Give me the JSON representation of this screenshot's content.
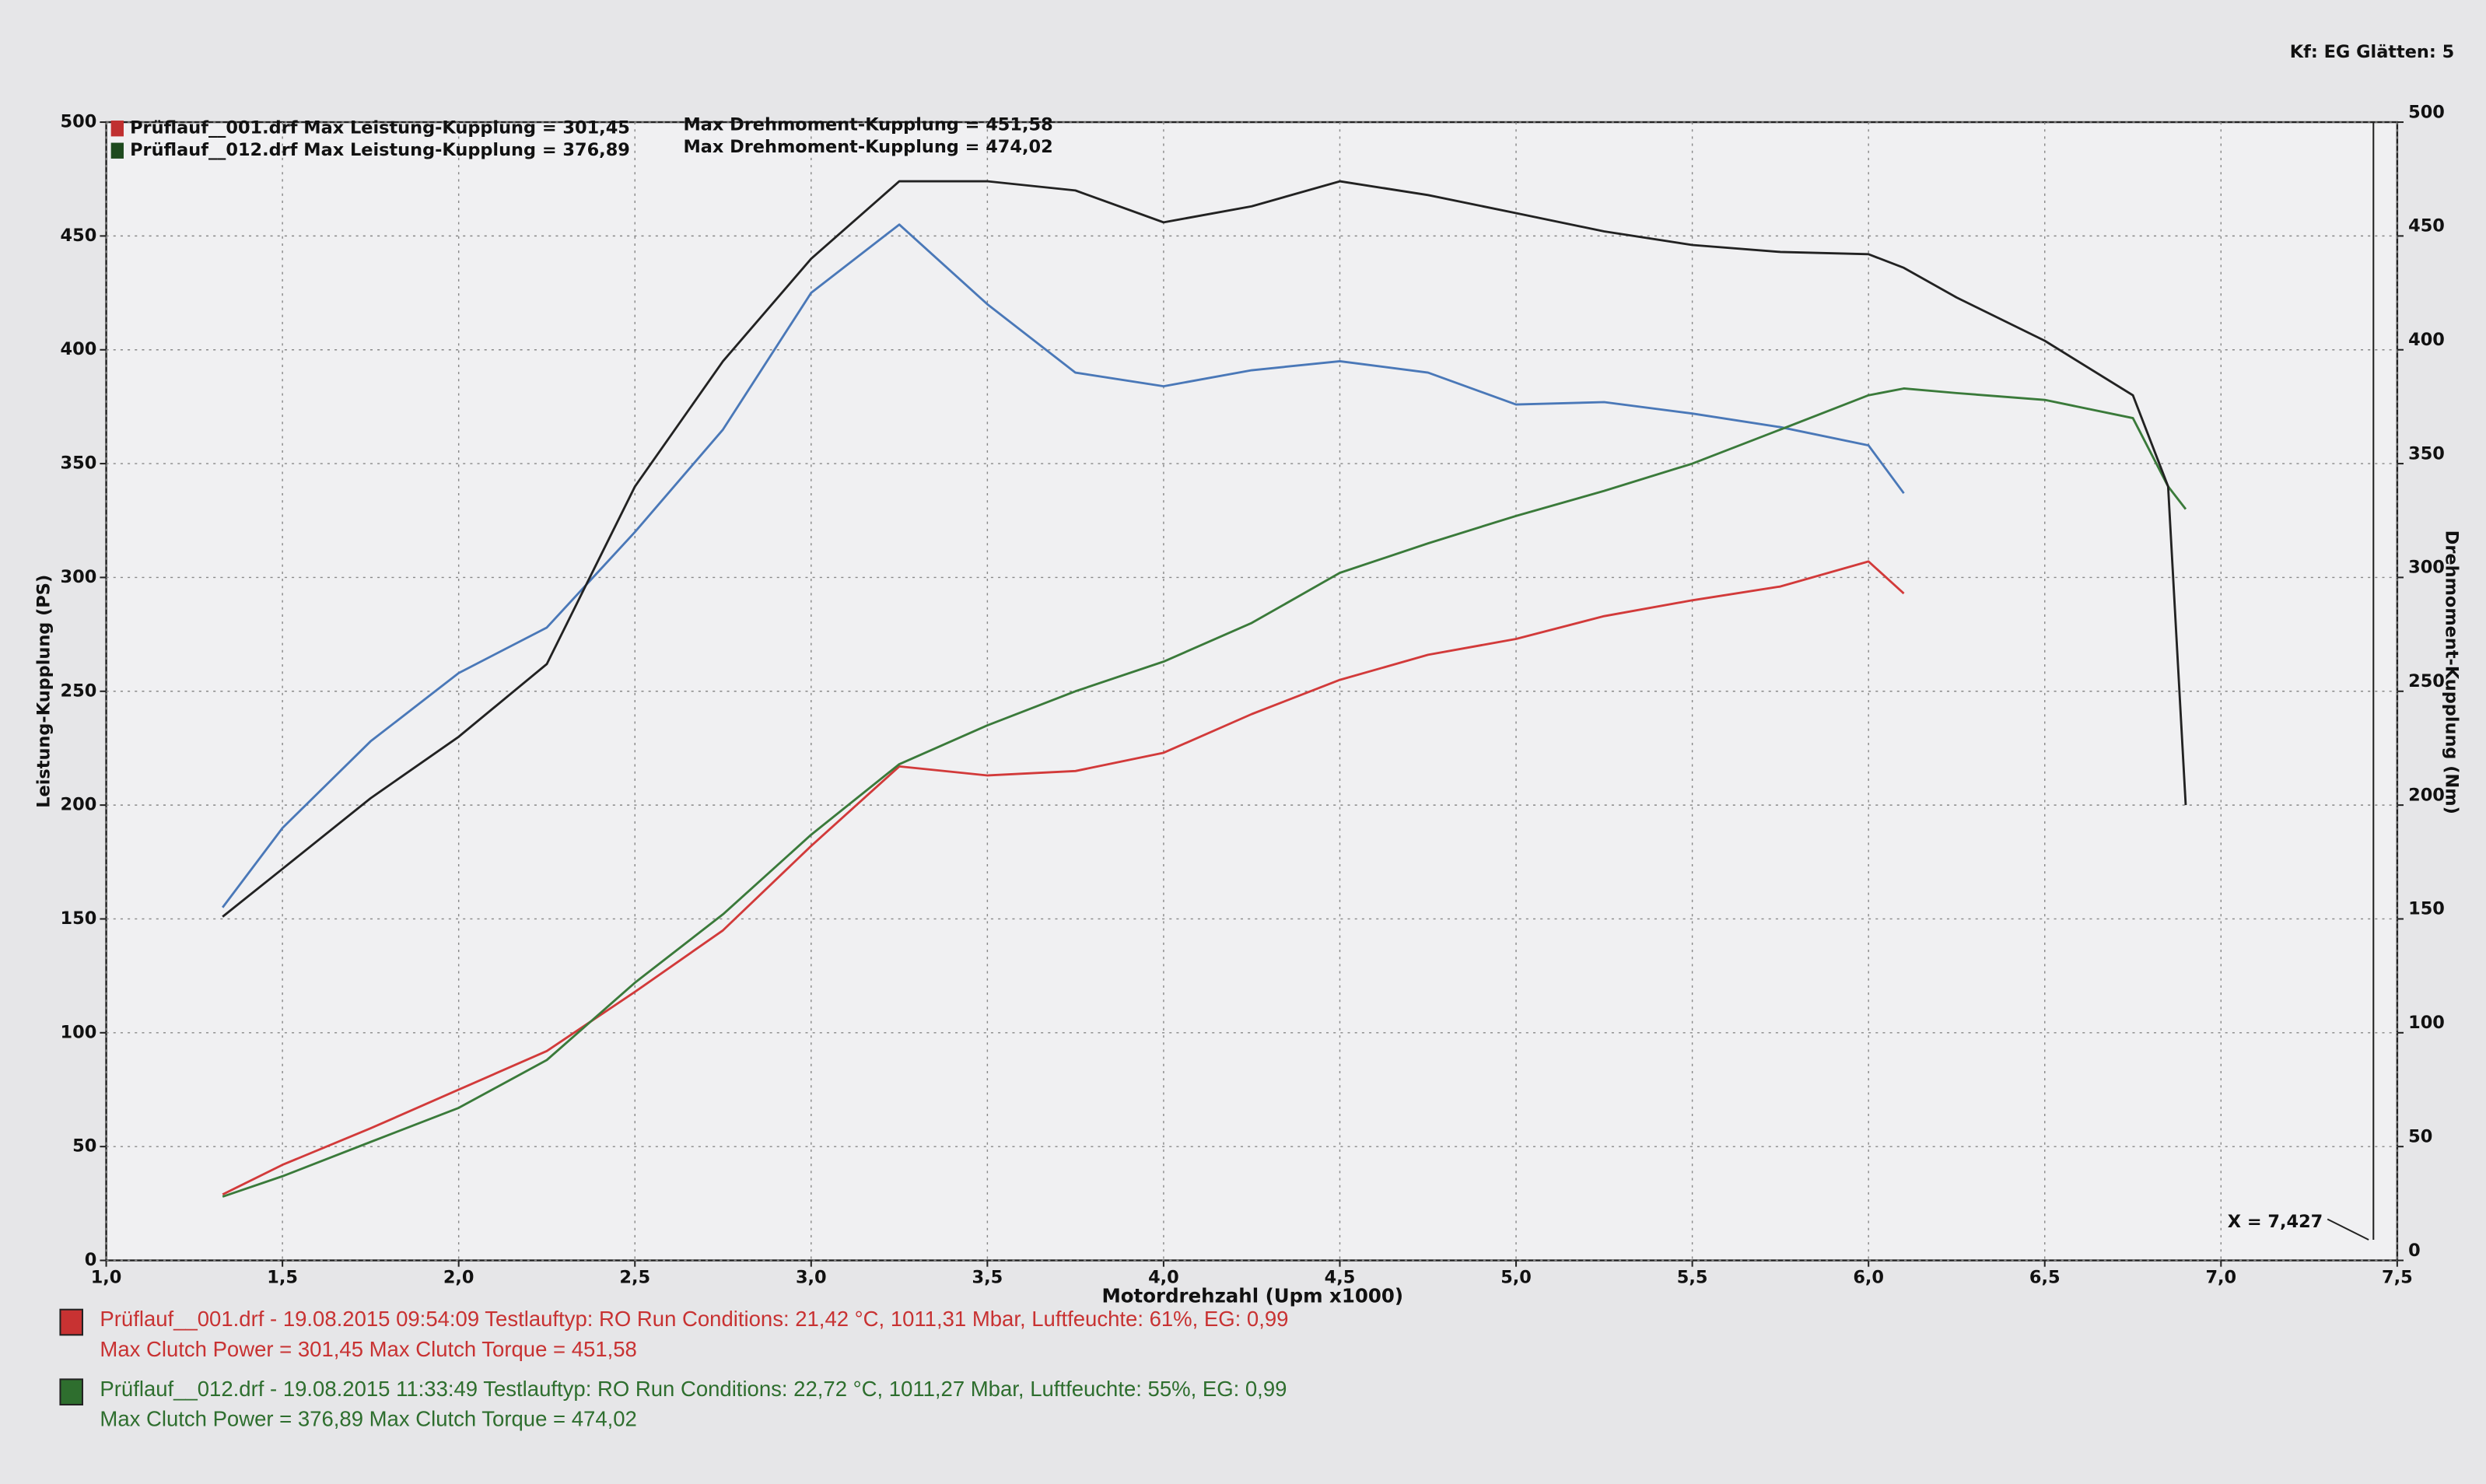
{
  "chart_data": {
    "type": "line",
    "corner_note": "Kf: EG  Glätten: 5",
    "xlabel": "Motordrehzahl (Upm x1000)",
    "ylabel": "Leistung-Kupplung (PS)",
    "y2label": "Drehmoment-Kupplung (Nm)",
    "annotation": "X = 7,427",
    "grid": true,
    "xlim": [
      1.0,
      7.5
    ],
    "xticks": [
      {
        "value": 1.0,
        "label": "1,0"
      },
      {
        "value": 1.5,
        "label": "1,5"
      },
      {
        "value": 2.0,
        "label": "2,0"
      },
      {
        "value": 2.5,
        "label": "2,5"
      },
      {
        "value": 3.0,
        "label": "3,0"
      },
      {
        "value": 3.5,
        "label": "3,5"
      },
      {
        "value": 4.0,
        "label": "4,0"
      },
      {
        "value": 4.5,
        "label": "4,5"
      },
      {
        "value": 5.0,
        "label": "5,0"
      },
      {
        "value": 5.5,
        "label": "5,5"
      },
      {
        "value": 6.0,
        "label": "6,0"
      },
      {
        "value": 6.5,
        "label": "6,5"
      },
      {
        "value": 7.0,
        "label": "7,0"
      },
      {
        "value": 7.5,
        "label": "7,5"
      }
    ],
    "ylim": [
      0,
      500
    ],
    "yticks": [
      0,
      50,
      100,
      150,
      200,
      250,
      300,
      350,
      400,
      450,
      500
    ],
    "y2lim": [
      0,
      500
    ],
    "y2ticks": [
      0,
      50,
      100,
      150,
      200,
      250,
      300,
      350,
      400,
      450,
      500
    ],
    "x": [
      1.33,
      1.5,
      1.75,
      2.0,
      2.25,
      2.5,
      2.75,
      3.0,
      3.25,
      3.5,
      3.75,
      4.0,
      4.25,
      4.5,
      4.75,
      5.0,
      5.25,
      5.5,
      5.75,
      6.0,
      6.1,
      6.25,
      6.5,
      6.75,
      6.85,
      6.9
    ],
    "series": [
      {
        "color": "#d23a3a",
        "values": [
          29,
          42,
          58,
          75,
          92,
          118,
          145,
          182,
          217,
          213,
          215,
          223,
          240,
          255,
          266,
          273,
          283,
          290,
          296,
          307,
          293,
          null,
          null,
          null,
          null,
          null
        ]
      },
      {
        "color": "#4a78b8",
        "axis": "y2",
        "values": [
          155,
          190,
          228,
          258,
          278,
          320,
          365,
          425,
          455,
          420,
          390,
          384,
          391,
          395,
          390,
          376,
          377,
          372,
          366,
          358,
          337,
          null,
          null,
          null,
          null,
          null
        ]
      },
      {
        "color": "#3a7a3a",
        "values": [
          28,
          37,
          52,
          67,
          88,
          122,
          152,
          187,
          218,
          235,
          250,
          263,
          280,
          302,
          315,
          327,
          338,
          350,
          365,
          380,
          383,
          381,
          378,
          370,
          340,
          330
        ]
      },
      {
        "color": "#222222",
        "axis": "y2",
        "values": [
          151,
          172,
          203,
          230,
          262,
          340,
          395,
          440,
          474,
          474,
          470,
          456,
          463,
          474,
          468,
          460,
          452,
          446,
          443,
          442,
          436,
          423,
          404,
          380,
          340,
          200
        ]
      }
    ],
    "legend": [
      {
        "text": "Prüflauf__001.drf Max Leistung-Kupplung = 301,45",
        "torque": "Max Drehmoment-Kupplung = 451,58",
        "color": "#c03030"
      },
      {
        "text": "Prüflauf__012.drf Max Leistung-Kupplung = 376,89",
        "torque": "Max Drehmoment-Kupplung = 474,02",
        "color": "#1e4a1e"
      }
    ],
    "info": [
      {
        "line1": "Prüflauf__001.drf - 19.08.2015 09:54:09  Testlauftyp: RO  Run Conditions: 21,42 °C, 1011,31 Mbar,  Luftfeuchte: 61%, EG: 0,99",
        "line2": "Max Clutch Power = 301,45  Max Clutch Torque = 451,58",
        "color": "#c83232"
      },
      {
        "line1": "Prüflauf__012.drf - 19.08.2015 11:33:49  Testlauftyp: RO  Run Conditions: 22,72 °C, 1011,27 Mbar,  Luftfeuchte: 55%, EG: 0,99",
        "line2": "Max Clutch Power = 376,89  Max Clutch Torque = 474,02",
        "color": "#2e6e2e"
      }
    ]
  }
}
